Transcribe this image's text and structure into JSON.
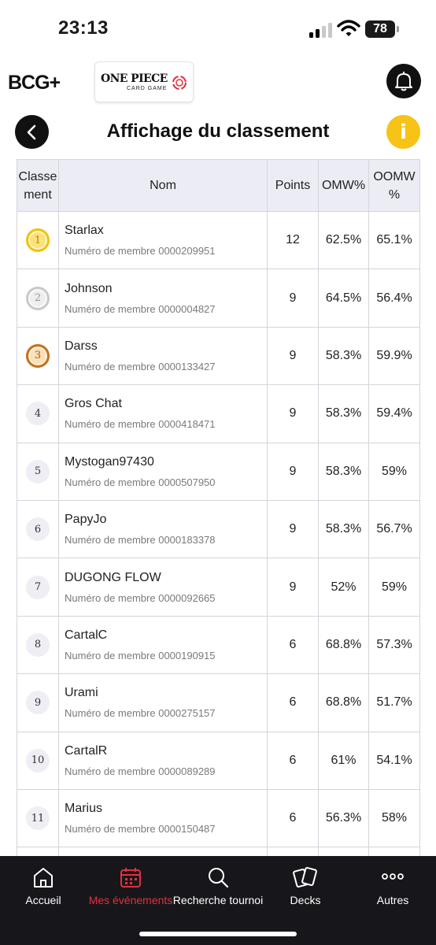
{
  "status_bar": {
    "time": "23:13",
    "battery": "78"
  },
  "header": {
    "brand_logo_text": "BCG+",
    "partner_logo": {
      "title": "ONE PIECE",
      "subtitle": "CARD GAME"
    }
  },
  "page": {
    "title": "Affichage du classement"
  },
  "table": {
    "headers": {
      "rank": "Classement",
      "rank_line1": "Classe",
      "rank_line2": "ment",
      "name": "Nom",
      "points": "Points",
      "omw": "OMW%",
      "oomw": "OOMW%",
      "oomw_line1": "OOMW",
      "oomw_line2": "%"
    },
    "rows": [
      {
        "rank": "1",
        "name": "Starlax",
        "member": "Numéro de membre 0000209951",
        "points": "12",
        "omw": "62.5%",
        "oomw": "65.1%"
      },
      {
        "rank": "2",
        "name": "Johnson",
        "member": "Numéro de membre 0000004827",
        "points": "9",
        "omw": "64.5%",
        "oomw": "56.4%"
      },
      {
        "rank": "3",
        "name": "Darss",
        "member": "Numéro de membre 0000133427",
        "points": "9",
        "omw": "58.3%",
        "oomw": "59.9%"
      },
      {
        "rank": "4",
        "name": "Gros Chat",
        "member": "Numéro de membre 0000418471",
        "points": "9",
        "omw": "58.3%",
        "oomw": "59.4%"
      },
      {
        "rank": "5",
        "name": "Mystogan97430",
        "member": "Numéro de membre 0000507950",
        "points": "9",
        "omw": "58.3%",
        "oomw": "59%"
      },
      {
        "rank": "6",
        "name": "PapyJo",
        "member": "Numéro de membre 0000183378",
        "points": "9",
        "omw": "58.3%",
        "oomw": "56.7%"
      },
      {
        "rank": "7",
        "name": "DUGONG FLOW",
        "member": "Numéro de membre 0000092665",
        "points": "9",
        "omw": "52%",
        "oomw": "59%"
      },
      {
        "rank": "8",
        "name": "CartalC",
        "member": "Numéro de membre 0000190915",
        "points": "6",
        "omw": "68.8%",
        "oomw": "57.3%"
      },
      {
        "rank": "9",
        "name": "Urami",
        "member": "Numéro de membre 0000275157",
        "points": "6",
        "omw": "68.8%",
        "oomw": "51.7%"
      },
      {
        "rank": "10",
        "name": "CartalR",
        "member": "Numéro de membre 0000089289",
        "points": "6",
        "omw": "61%",
        "oomw": "54.1%"
      },
      {
        "rank": "11",
        "name": "Marius",
        "member": "Numéro de membre 0000150487",
        "points": "6",
        "omw": "56.3%",
        "oomw": "58%"
      }
    ]
  },
  "bottom_nav": {
    "items": [
      {
        "label": "Accueil",
        "icon": "home-icon"
      },
      {
        "label": "Mes événements",
        "icon": "calendar-icon",
        "active": true
      },
      {
        "label": "Recherche tournoi",
        "icon": "search-icon"
      },
      {
        "label": "Decks",
        "icon": "cards-icon"
      },
      {
        "label": "Autres",
        "icon": "more-icon"
      }
    ]
  },
  "colors": {
    "accent_active": "#e0313f",
    "info_yellow": "#f6c316",
    "nav_background": "#17171b",
    "header_row": "#ececf4",
    "gold": "#f2c10e",
    "silver": "#c9c9c9",
    "bronze": "#c4701c"
  }
}
